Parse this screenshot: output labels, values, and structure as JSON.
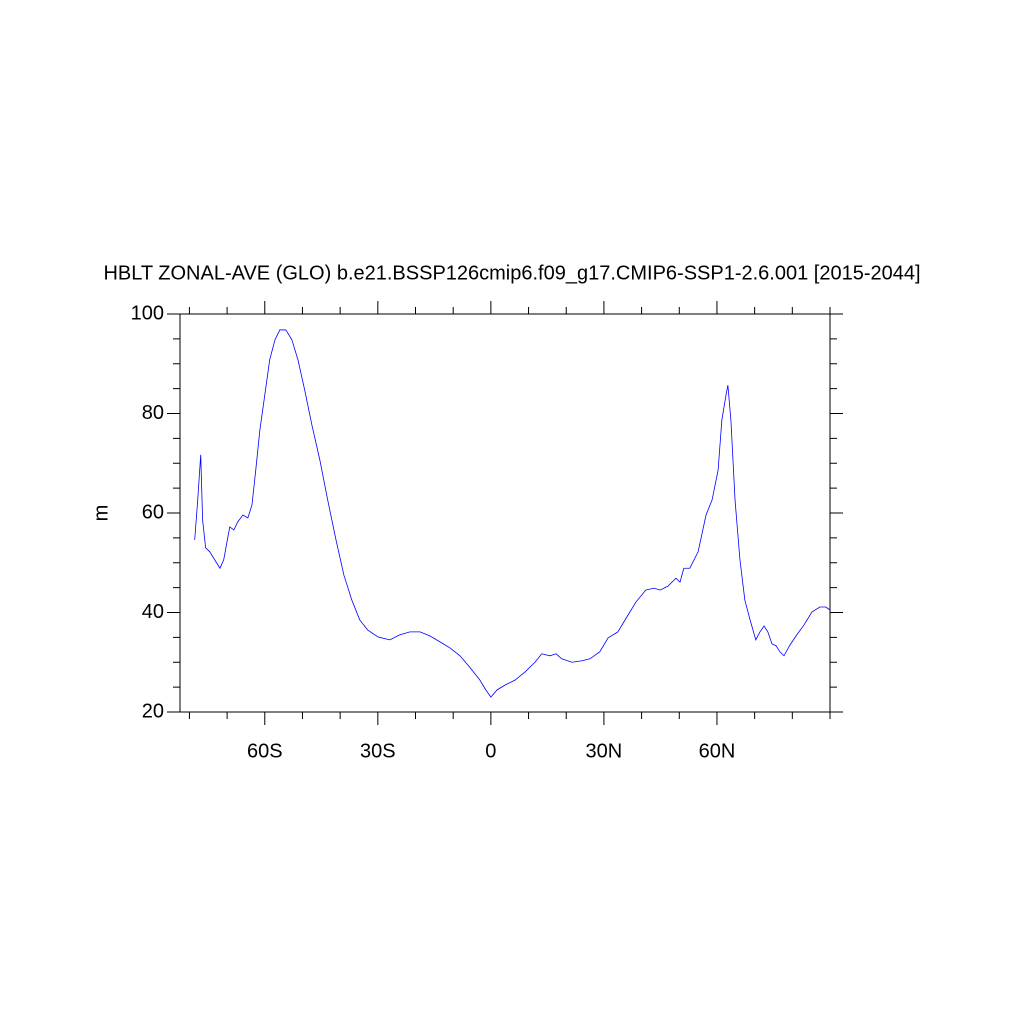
{
  "chart_data": {
    "type": "line",
    "title": "HBLT ZONAL-AVE (GLO) b.e21.BSSP126cmip6.f09_g17.CMIP6-SSP1-2.6.001 [2015-2044]",
    "y_label": "m",
    "xlim": [
      -82.5,
      90
    ],
    "ylim": [
      20,
      100
    ],
    "xticks": [
      {
        "value": -60,
        "label": "60S"
      },
      {
        "value": -30,
        "label": "30S"
      },
      0,
      {
        "value": 30,
        "label": "30N"
      },
      {
        "value": 60,
        "label": "60N"
      }
    ],
    "xminorticks": [
      -80,
      -70,
      -50,
      -40,
      -20,
      -10,
      10,
      20,
      40,
      50,
      70,
      80,
      90
    ],
    "yticks": [
      20,
      40,
      60,
      80,
      100
    ],
    "yminorticks": [
      25,
      30,
      35,
      45,
      50,
      55,
      65,
      70,
      75,
      85,
      90,
      95
    ],
    "grid": false,
    "series": [
      {
        "color": "#0000ff",
        "x": [
          -78.6,
          -77.8,
          -77,
          -76.5,
          -75.7,
          -74.6,
          -73.3,
          -71.9,
          -70.9,
          -69.3,
          -68.2,
          -67.2,
          -65.8,
          -64.5,
          -63.4,
          -62.4,
          -61.3,
          -60,
          -58.7,
          -57.3,
          -56,
          -54.4,
          -52.8,
          -51.2,
          -49.4,
          -47.5,
          -45.4,
          -43.3,
          -41.1,
          -39,
          -36.9,
          -34.8,
          -32.7,
          -30,
          -26.8,
          -24.2,
          -21.5,
          -18.8,
          -16.2,
          -13.5,
          -10.9,
          -8.2,
          -5.6,
          -2.9,
          -1.3,
          0,
          1.6,
          3.7,
          6.4,
          9,
          11.7,
          13.5,
          15.7,
          17.3,
          18.8,
          21.5,
          24.2,
          26.3,
          28.9,
          31.1,
          33.7,
          36.4,
          38.5,
          41.1,
          43.3,
          44.9,
          47,
          49.1,
          50.2,
          51.2,
          52.8,
          55,
          57.1,
          58.7,
          60.3,
          61.3,
          62.4,
          62.9,
          63.7,
          64.8,
          66.1,
          67.4,
          68.8,
          70.3,
          71.4,
          72.5,
          73.5,
          74.6,
          75.7,
          76.7,
          77.8,
          79.4,
          81,
          83.1,
          85.2,
          87.3,
          88.9,
          90
        ],
        "values": [
          54.6,
          62.6,
          71.7,
          58.6,
          53,
          52.2,
          50.6,
          48.9,
          50.6,
          57.2,
          56.6,
          58.2,
          59.6,
          59,
          61.6,
          68.6,
          76.7,
          83.7,
          90.8,
          94.8,
          96.8,
          96.8,
          94.8,
          90.8,
          84.7,
          77.7,
          70.7,
          62.6,
          54.6,
          47.5,
          42.5,
          38.5,
          36.5,
          35.1,
          34.5,
          35.5,
          36.1,
          36.1,
          35.3,
          34.1,
          32.9,
          31.3,
          29,
          26.4,
          24.4,
          23,
          24.4,
          25.4,
          26.4,
          28,
          30,
          31.7,
          31.3,
          31.7,
          30.7,
          30,
          30.3,
          30.7,
          32.1,
          34.9,
          36.1,
          39.5,
          42.1,
          44.5,
          44.9,
          44.5,
          45.3,
          46.9,
          46.1,
          48.9,
          48.9,
          52.2,
          59.6,
          62.6,
          68.6,
          78.7,
          83.7,
          85.7,
          78.7,
          62.6,
          50.6,
          42.5,
          38.5,
          34.5,
          36.1,
          37.3,
          36.1,
          33.7,
          33.3,
          32.1,
          31.3,
          33.5,
          35.3,
          37.5,
          40.1,
          41.1,
          41.1,
          40.5
        ]
      }
    ]
  }
}
